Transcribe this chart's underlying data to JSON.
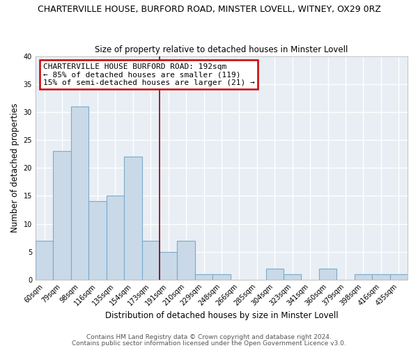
{
  "title": "CHARTERVILLE HOUSE, BURFORD ROAD, MINSTER LOVELL, WITNEY, OX29 0RZ",
  "subtitle": "Size of property relative to detached houses in Minster Lovell",
  "xlabel": "Distribution of detached houses by size in Minster Lovell",
  "ylabel": "Number of detached properties",
  "bin_labels": [
    "60sqm",
    "79sqm",
    "98sqm",
    "116sqm",
    "135sqm",
    "154sqm",
    "173sqm",
    "191sqm",
    "210sqm",
    "229sqm",
    "248sqm",
    "266sqm",
    "285sqm",
    "304sqm",
    "323sqm",
    "341sqm",
    "360sqm",
    "379sqm",
    "398sqm",
    "416sqm",
    "435sqm"
  ],
  "bar_heights": [
    7,
    23,
    31,
    14,
    15,
    22,
    7,
    5,
    7,
    1,
    1,
    0,
    0,
    2,
    1,
    0,
    2,
    0,
    1,
    1,
    1
  ],
  "bar_color": "#c9d9e8",
  "bar_edge_color": "#7aaaca",
  "ylim": [
    0,
    40
  ],
  "yticks": [
    0,
    5,
    10,
    15,
    20,
    25,
    30,
    35,
    40
  ],
  "vline_x_index": 7,
  "vline_color": "#8b0000",
  "annotation_title": "CHARTERVILLE HOUSE BURFORD ROAD: 192sqm",
  "annotation_line1": "← 85% of detached houses are smaller (119)",
  "annotation_line2": "15% of semi-detached houses are larger (21) →",
  "annotation_box_color": "#ffffff",
  "annotation_box_edge": "#cc0000",
  "footer1": "Contains HM Land Registry data © Crown copyright and database right 2024.",
  "footer2": "Contains public sector information licensed under the Open Government Licence v3.0.",
  "background_color": "#ffffff",
  "plot_bg_color": "#e8eef4",
  "grid_color": "#ffffff",
  "title_fontsize": 9,
  "subtitle_fontsize": 8.5,
  "axis_label_fontsize": 8.5,
  "tick_fontsize": 7,
  "footer_fontsize": 6.5,
  "annotation_fontsize": 8
}
